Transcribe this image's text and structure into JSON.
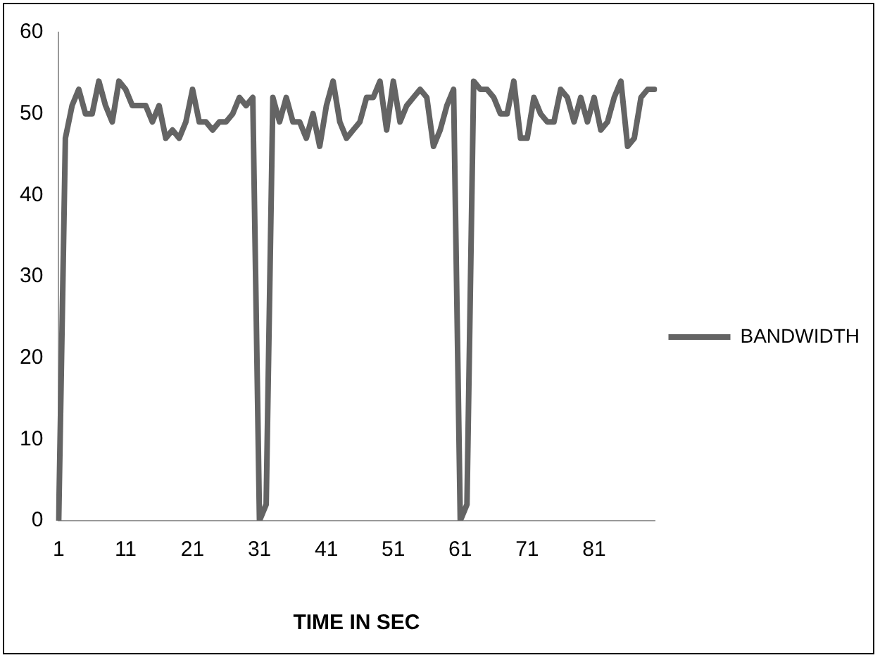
{
  "chart_data": {
    "type": "line",
    "xlabel": "TIME IN SEC",
    "categories": [
      "1",
      null,
      null,
      null,
      null,
      null,
      null,
      null,
      null,
      null,
      "11",
      null,
      null,
      null,
      null,
      null,
      null,
      null,
      null,
      null,
      "21",
      null,
      null,
      null,
      null,
      null,
      null,
      null,
      null,
      null,
      "31",
      null,
      null,
      null,
      null,
      null,
      null,
      null,
      null,
      null,
      "41",
      null,
      null,
      null,
      null,
      null,
      null,
      null,
      null,
      null,
      "51",
      null,
      null,
      null,
      null,
      null,
      null,
      null,
      null,
      null,
      "61",
      null,
      null,
      null,
      null,
      null,
      null,
      null,
      null,
      null,
      "71",
      null,
      null,
      null,
      null,
      null,
      null,
      null,
      null,
      null,
      "81",
      null,
      null,
      null,
      null,
      null,
      null,
      null,
      null,
      null
    ],
    "series": [
      {
        "name": "BANDWIDTH",
        "color": "#646464",
        "values": [
          0,
          47,
          51,
          53,
          50,
          50,
          54,
          51,
          49,
          54,
          53,
          51,
          51,
          51,
          49,
          51,
          47,
          48,
          47,
          49,
          53,
          49,
          49,
          48,
          49,
          49,
          50,
          52,
          51,
          52,
          0,
          2,
          52,
          49,
          52,
          49,
          49,
          47,
          50,
          46,
          51,
          54,
          49,
          47,
          48,
          49,
          52,
          52,
          54,
          48,
          54,
          49,
          51,
          52,
          53,
          52,
          46,
          48,
          51,
          53,
          0,
          2,
          54,
          53,
          53,
          52,
          50,
          50,
          54,
          47,
          47,
          52,
          50,
          49,
          49,
          53,
          52,
          49,
          52,
          49,
          52,
          48,
          49,
          52,
          54,
          46,
          47,
          52,
          53,
          53
        ]
      }
    ],
    "ylim": [
      0,
      60
    ],
    "yticks": [
      0,
      10,
      20,
      30,
      40,
      50,
      60
    ],
    "grid": false,
    "legend": "right",
    "marker": "none",
    "line_style": "solid"
  }
}
